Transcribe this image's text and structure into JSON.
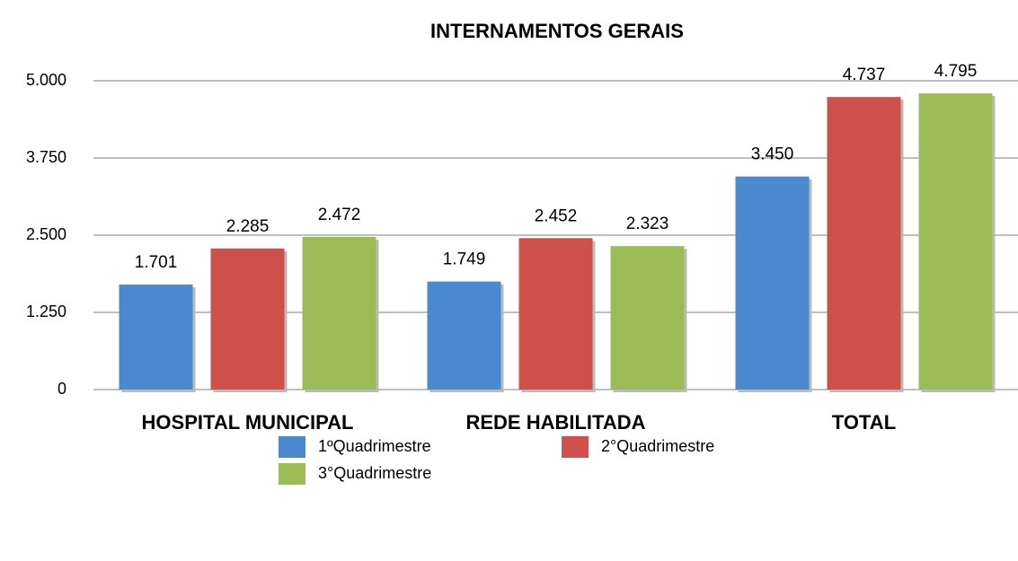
{
  "chart_data": {
    "type": "bar",
    "title": "INTERNAMENTOS GERAIS",
    "categories": [
      "HOSPITAL MUNICIPAL",
      "REDE HABILITADA",
      "TOTAL"
    ],
    "series": [
      {
        "name": "1ºQuadrimestre",
        "color": "#4a89cf",
        "values": [
          1701,
          1749,
          3450
        ],
        "value_labels": [
          "1.701",
          "1.749",
          "3.450"
        ]
      },
      {
        "name": "2°Quadrimestre",
        "color": "#cf4f4a",
        "values": [
          2285,
          2452,
          4737
        ],
        "value_labels": [
          "2.285",
          "2.452",
          "4.737"
        ]
      },
      {
        "name": "3°Quadrimestre",
        "color": "#9bbb57",
        "values": [
          2472,
          2323,
          4795
        ],
        "value_labels": [
          "2.472",
          "2.323",
          "4.795"
        ]
      }
    ],
    "ylim": [
      0,
      5000
    ],
    "yticks": [
      0,
      {
        "value": 1250,
        "label": "1.250"
      },
      {
        "value": 2500,
        "label": "2.500"
      },
      {
        "value": 3750,
        "label": "3.750"
      },
      {
        "value": 5000,
        "label": "5.000"
      }
    ],
    "grid": true
  }
}
